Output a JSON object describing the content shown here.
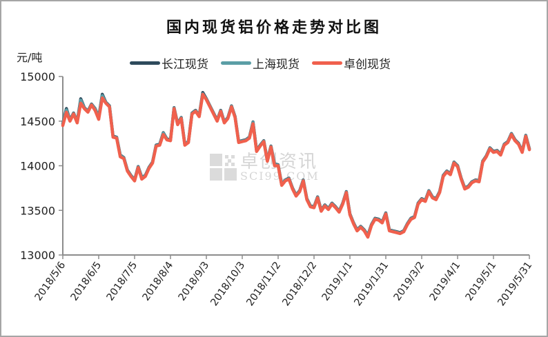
{
  "chart_data": {
    "type": "line",
    "title": "国内现货铝价格走势对比图",
    "ylabel": "元/吨",
    "xlabel": "",
    "ylim": [
      13000,
      15000
    ],
    "yticks": [
      13000,
      13500,
      14000,
      14500,
      15000
    ],
    "grid": false,
    "legend_position": "top",
    "x_tick_labels": [
      "2018/5/6",
      "2018/6/5",
      "2018/7/5",
      "2018/8/4",
      "2018/9/3",
      "2018/10/3",
      "2018/11/2",
      "2018/12/2",
      "2019/1/1",
      "2019/1/31",
      "2019/3/2",
      "2019/4/1",
      "2019/5/1",
      "2019/5/31"
    ],
    "x": [
      "2018/5/6",
      "2018/5/9",
      "2018/5/12",
      "2018/5/15",
      "2018/5/18",
      "2018/5/21",
      "2018/5/24",
      "2018/5/27",
      "2018/5/30",
      "2018/6/2",
      "2018/6/5",
      "2018/6/8",
      "2018/6/11",
      "2018/6/14",
      "2018/6/17",
      "2018/6/20",
      "2018/6/23",
      "2018/6/26",
      "2018/6/29",
      "2018/7/2",
      "2018/7/5",
      "2018/7/8",
      "2018/7/11",
      "2018/7/14",
      "2018/7/17",
      "2018/7/20",
      "2018/7/23",
      "2018/7/26",
      "2018/7/29",
      "2018/8/1",
      "2018/8/4",
      "2018/8/7",
      "2018/8/10",
      "2018/8/13",
      "2018/8/16",
      "2018/8/19",
      "2018/8/22",
      "2018/8/25",
      "2018/8/28",
      "2018/8/31",
      "2018/9/3",
      "2018/9/6",
      "2018/9/9",
      "2018/9/12",
      "2018/9/15",
      "2018/9/18",
      "2018/9/21",
      "2018/9/24",
      "2018/9/27",
      "2018/9/30",
      "2018/10/3",
      "2018/10/6",
      "2018/10/9",
      "2018/10/12",
      "2018/10/15",
      "2018/10/18",
      "2018/10/21",
      "2018/10/24",
      "2018/10/27",
      "2018/10/30",
      "2018/11/2",
      "2018/11/5",
      "2018/11/8",
      "2018/11/11",
      "2018/11/14",
      "2018/11/17",
      "2018/11/20",
      "2018/11/23",
      "2018/11/26",
      "2018/11/29",
      "2018/12/2",
      "2018/12/5",
      "2018/12/8",
      "2018/12/11",
      "2018/12/14",
      "2018/12/17",
      "2018/12/20",
      "2018/12/23",
      "2018/12/26",
      "2018/12/29",
      "2019/1/1",
      "2019/1/4",
      "2019/1/7",
      "2019/1/10",
      "2019/1/13",
      "2019/1/16",
      "2019/1/19",
      "2019/1/22",
      "2019/1/25",
      "2019/1/28",
      "2019/1/31",
      "2019/2/3",
      "2019/2/6",
      "2019/2/9",
      "2019/2/12",
      "2019/2/15",
      "2019/2/18",
      "2019/2/21",
      "2019/2/24",
      "2019/2/27",
      "2019/3/2",
      "2019/3/5",
      "2019/3/8",
      "2019/3/11",
      "2019/3/14",
      "2019/3/17",
      "2019/3/20",
      "2019/3/23",
      "2019/3/26",
      "2019/3/29",
      "2019/4/1",
      "2019/4/4",
      "2019/4/7",
      "2019/4/10",
      "2019/4/13",
      "2019/4/16",
      "2019/4/19",
      "2019/4/22",
      "2019/4/25",
      "2019/4/28",
      "2019/5/1",
      "2019/5/4",
      "2019/5/7",
      "2019/5/10",
      "2019/5/13",
      "2019/5/16",
      "2019/5/19",
      "2019/5/22",
      "2019/5/25",
      "2019/5/28",
      "2019/5/31"
    ],
    "series": [
      {
        "name": "长江现货",
        "color": "#2e4a5c",
        "values": [
          14480,
          14650,
          14520,
          14600,
          14500,
          14760,
          14660,
          14620,
          14700,
          14650,
          14550,
          14810,
          14720,
          14680,
          14340,
          14330,
          14130,
          14100,
          13960,
          13900,
          13850,
          14000,
          13880,
          13900,
          13990,
          14050,
          14240,
          14250,
          14380,
          14310,
          14300,
          14660,
          14480,
          14550,
          14250,
          14280,
          14600,
          14630,
          14570,
          14830,
          14760,
          14680,
          14600,
          14520,
          14630,
          14500,
          14550,
          14680,
          14560,
          14280,
          14290,
          14300,
          14330,
          14500,
          14180,
          14240,
          14290,
          14070,
          14230,
          14030,
          14020,
          13800,
          13850,
          13870,
          13760,
          13680,
          13730,
          13850,
          13640,
          13560,
          13550,
          13660,
          13510,
          13570,
          13530,
          13590,
          13550,
          13500,
          13590,
          13720,
          13470,
          13370,
          13290,
          13330,
          13290,
          13230,
          13350,
          13420,
          13410,
          13380,
          13480,
          13290,
          13280,
          13270,
          13260,
          13280,
          13360,
          13420,
          13440,
          13590,
          13640,
          13620,
          13730,
          13660,
          13640,
          13720,
          13900,
          13950,
          13920,
          14050,
          14010,
          13870,
          13760,
          13780,
          13830,
          13850,
          13840,
          14060,
          14120,
          14210,
          14170,
          14180,
          14140,
          14250,
          14280,
          14370,
          14300,
          14260,
          14170,
          14350,
          14200
        ]
      },
      {
        "name": "上海现货",
        "color": "#5b9ea6",
        "values": [
          14470,
          14630,
          14510,
          14590,
          14490,
          14740,
          14650,
          14610,
          14690,
          14640,
          14540,
          14790,
          14710,
          14670,
          14330,
          14320,
          14120,
          14090,
          13950,
          13890,
          13840,
          13990,
          13870,
          13890,
          13980,
          14040,
          14230,
          14240,
          14370,
          14300,
          14290,
          14650,
          14470,
          14540,
          14240,
          14270,
          14590,
          14620,
          14560,
          14810,
          14750,
          14670,
          14590,
          14510,
          14620,
          14490,
          14540,
          14670,
          14550,
          14270,
          14280,
          14290,
          14320,
          14490,
          14170,
          14230,
          14280,
          14060,
          14220,
          14020,
          14010,
          13790,
          13840,
          13860,
          13750,
          13670,
          13720,
          13840,
          13630,
          13550,
          13540,
          13650,
          13500,
          13560,
          13520,
          13580,
          13540,
          13490,
          13580,
          13710,
          13460,
          13360,
          13280,
          13320,
          13280,
          13220,
          13340,
          13410,
          13400,
          13370,
          13470,
          13280,
          13270,
          13260,
          13250,
          13270,
          13350,
          13410,
          13430,
          13580,
          13630,
          13610,
          13720,
          13650,
          13630,
          13710,
          13890,
          13940,
          13910,
          14040,
          14000,
          13860,
          13750,
          13770,
          13820,
          13840,
          13830,
          14050,
          14110,
          14200,
          14160,
          14170,
          14130,
          14240,
          14270,
          14360,
          14290,
          14250,
          14160,
          14340,
          14190
        ]
      },
      {
        "name": "卓创现货",
        "color": "#f0604d",
        "values": [
          14450,
          14600,
          14500,
          14580,
          14480,
          14700,
          14640,
          14600,
          14680,
          14620,
          14520,
          14760,
          14700,
          14660,
          14320,
          14310,
          14100,
          14080,
          13940,
          13880,
          13830,
          13980,
          13850,
          13880,
          13970,
          14030,
          14220,
          14230,
          14350,
          14290,
          14280,
          14640,
          14460,
          14530,
          14230,
          14260,
          14580,
          14610,
          14550,
          14800,
          14740,
          14660,
          14580,
          14500,
          14610,
          14480,
          14530,
          14660,
          14540,
          14260,
          14270,
          14280,
          14310,
          14470,
          14160,
          14220,
          14270,
          14050,
          14210,
          14000,
          14000,
          13780,
          13830,
          13850,
          13740,
          13660,
          13710,
          13830,
          13620,
          13540,
          13530,
          13640,
          13490,
          13550,
          13510,
          13570,
          13530,
          13480,
          13570,
          13700,
          13450,
          13350,
          13270,
          13310,
          13270,
          13200,
          13330,
          13400,
          13390,
          13360,
          13460,
          13270,
          13260,
          13250,
          13240,
          13260,
          13340,
          13400,
          13420,
          13570,
          13620,
          13600,
          13710,
          13640,
          13620,
          13700,
          13880,
          13930,
          13900,
          14030,
          13990,
          13850,
          13740,
          13760,
          13810,
          13830,
          13820,
          14040,
          14100,
          14190,
          14150,
          14160,
          14120,
          14230,
          14260,
          14350,
          14280,
          14240,
          14150,
          14330,
          14180
        ]
      }
    ],
    "watermark": {
      "cn": "卓创资讯",
      "en": "SCI99.COM"
    }
  },
  "page": {
    "title": "国内现货铝价格走势对比图",
    "unit": "元/吨",
    "legend": [
      {
        "label": "长江现货",
        "color": "#2e4a5c"
      },
      {
        "label": "上海现货",
        "color": "#5b9ea6"
      },
      {
        "label": "卓创现货",
        "color": "#f0604d"
      }
    ]
  }
}
